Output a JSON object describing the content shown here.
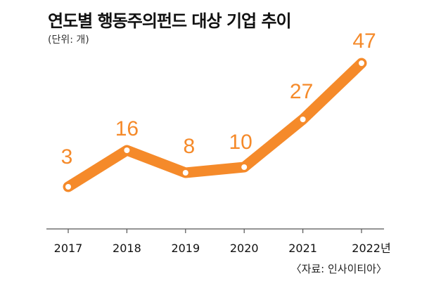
{
  "title": "연도별 행동주의펀드 대상 기업 추이",
  "unit_note": "(단위: 개)",
  "source_note": "〈자료: 인사이티아〉",
  "colors": {
    "line": "#f58a2a",
    "marker": "#ffffff",
    "label": "#f58a2a",
    "axis": "#555555",
    "text": "#111111"
  },
  "chart_data": {
    "type": "line",
    "categories": [
      "2017",
      "2018",
      "2019",
      "2020",
      "2021",
      "2022년"
    ],
    "values": [
      3,
      16,
      8,
      10,
      27,
      47
    ],
    "xlabel": "",
    "ylabel": "",
    "grid": false,
    "legend": "none"
  }
}
